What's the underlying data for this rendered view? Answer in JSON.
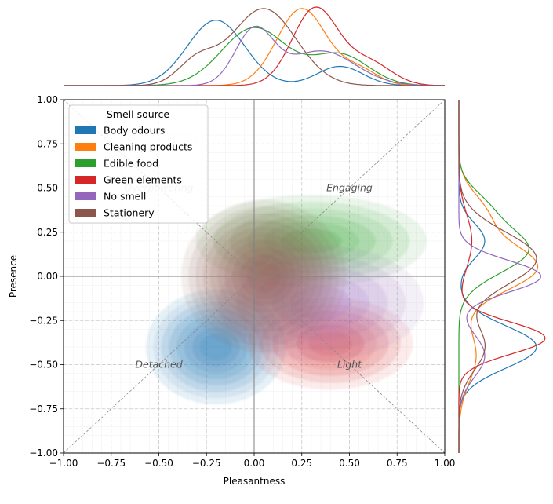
{
  "chart_data": {
    "type": "kde-joint",
    "title": "",
    "xlabel": "Pleasantness",
    "ylabel": "Presence",
    "xlim": [
      -1.0,
      1.0
    ],
    "ylim": [
      -1.0,
      1.0
    ],
    "xticks": [
      "−1.00",
      "−0.75",
      "−0.50",
      "−0.25",
      "0.00",
      "0.25",
      "0.50",
      "0.75",
      "1.00"
    ],
    "yticks": [
      "−1.00",
      "−0.75",
      "−0.50",
      "−0.25",
      "0.00",
      "0.25",
      "0.50",
      "0.75",
      "1.00"
    ],
    "tick_values": [
      -1.0,
      -0.75,
      -0.5,
      -0.25,
      0.0,
      0.25,
      0.5,
      0.75,
      1.0
    ],
    "grid": true,
    "legend": {
      "title": "Smell source",
      "placement": "top-left",
      "entries": [
        {
          "name": "Body odours",
          "color": "#1f77b4"
        },
        {
          "name": "Cleaning products",
          "color": "#ff7f0e"
        },
        {
          "name": "Edible food",
          "color": "#2ca02c"
        },
        {
          "name": "Green elements",
          "color": "#d62728"
        },
        {
          "name": "No smell",
          "color": "#9467bd"
        },
        {
          "name": "Stationery",
          "color": "#8c564b"
        }
      ]
    },
    "annotations": [
      {
        "text": "Overpowering",
        "x": -0.5,
        "y": 0.5,
        "faded": true
      },
      {
        "text": "Engaging",
        "x": 0.5,
        "y": 0.5,
        "faded": false
      },
      {
        "text": "Detached",
        "x": -0.5,
        "y": -0.5,
        "faded": false
      },
      {
        "text": "Light",
        "x": 0.5,
        "y": -0.5,
        "faded": false
      }
    ],
    "series": [
      {
        "name": "Body odours",
        "color": "#1f77b4",
        "center": [
          -0.2,
          -0.4
        ],
        "spread": [
          0.17,
          0.15
        ],
        "levels": 8,
        "marginal_x": [
          {
            "mu": -0.2,
            "sd": 0.15,
            "w": 0.85
          },
          {
            "mu": 0.45,
            "sd": 0.12,
            "w": 0.25
          }
        ],
        "marginal_y": [
          {
            "mu": -0.4,
            "sd": 0.12,
            "w": 0.9
          },
          {
            "mu": 0.2,
            "sd": 0.1,
            "w": 0.3
          }
        ]
      },
      {
        "name": "Cleaning products",
        "color": "#ff7f0e",
        "center": [
          0.25,
          0.1
        ],
        "spread": [
          0.15,
          0.14
        ],
        "levels": 0,
        "marginal_x": [
          {
            "mu": 0.25,
            "sd": 0.13,
            "w": 1.0
          },
          {
            "mu": 0.55,
            "sd": 0.1,
            "w": 0.2
          }
        ],
        "marginal_y": [
          {
            "mu": 0.05,
            "sd": 0.13,
            "w": 0.9
          },
          {
            "mu": 0.35,
            "sd": 0.12,
            "w": 0.3
          },
          {
            "mu": -0.45,
            "sd": 0.15,
            "w": 0.2
          }
        ]
      },
      {
        "name": "Edible food",
        "color": "#2ca02c",
        "center": [
          0.3,
          0.2
        ],
        "spread": [
          0.28,
          0.12
        ],
        "levels": 6,
        "marginal_x": [
          {
            "mu": 0.0,
            "sd": 0.17,
            "w": 0.75
          },
          {
            "mu": 0.45,
            "sd": 0.15,
            "w": 0.4
          }
        ],
        "marginal_y": [
          {
            "mu": 0.15,
            "sd": 0.13,
            "w": 0.8
          },
          {
            "mu": 0.4,
            "sd": 0.1,
            "w": 0.25
          }
        ]
      },
      {
        "name": "Green elements",
        "color": "#d62728",
        "center": [
          0.4,
          -0.38
        ],
        "spread": [
          0.2,
          0.12
        ],
        "levels": 6,
        "marginal_x": [
          {
            "mu": 0.32,
            "sd": 0.12,
            "w": 1.0
          },
          {
            "mu": 0.6,
            "sd": 0.12,
            "w": 0.3
          }
        ],
        "marginal_y": [
          {
            "mu": -0.35,
            "sd": 0.09,
            "w": 1.0
          },
          {
            "mu": 0.2,
            "sd": 0.15,
            "w": 0.15
          }
        ]
      },
      {
        "name": "No smell",
        "color": "#9467bd",
        "center": [
          0.35,
          -0.15
        ],
        "spread": [
          0.25,
          0.15
        ],
        "levels": 5,
        "marginal_x": [
          {
            "mu": 0.0,
            "sd": 0.1,
            "w": 0.7
          },
          {
            "mu": 0.35,
            "sd": 0.18,
            "w": 0.45
          }
        ],
        "marginal_y": [
          {
            "mu": 0.0,
            "sd": 0.09,
            "w": 0.95
          },
          {
            "mu": -0.45,
            "sd": 0.12,
            "w": 0.3
          }
        ]
      },
      {
        "name": "Stationery",
        "color": "#8c564b",
        "center": [
          0.05,
          0.0
        ],
        "spread": [
          0.2,
          0.2
        ],
        "levels": 10,
        "marginal_x": [
          {
            "mu": 0.05,
            "sd": 0.17,
            "w": 1.0
          },
          {
            "mu": -0.3,
            "sd": 0.1,
            "w": 0.3
          }
        ],
        "marginal_y": [
          {
            "mu": 0.1,
            "sd": 0.15,
            "w": 0.9
          },
          {
            "mu": -0.4,
            "sd": 0.13,
            "w": 0.3
          }
        ]
      }
    ]
  }
}
